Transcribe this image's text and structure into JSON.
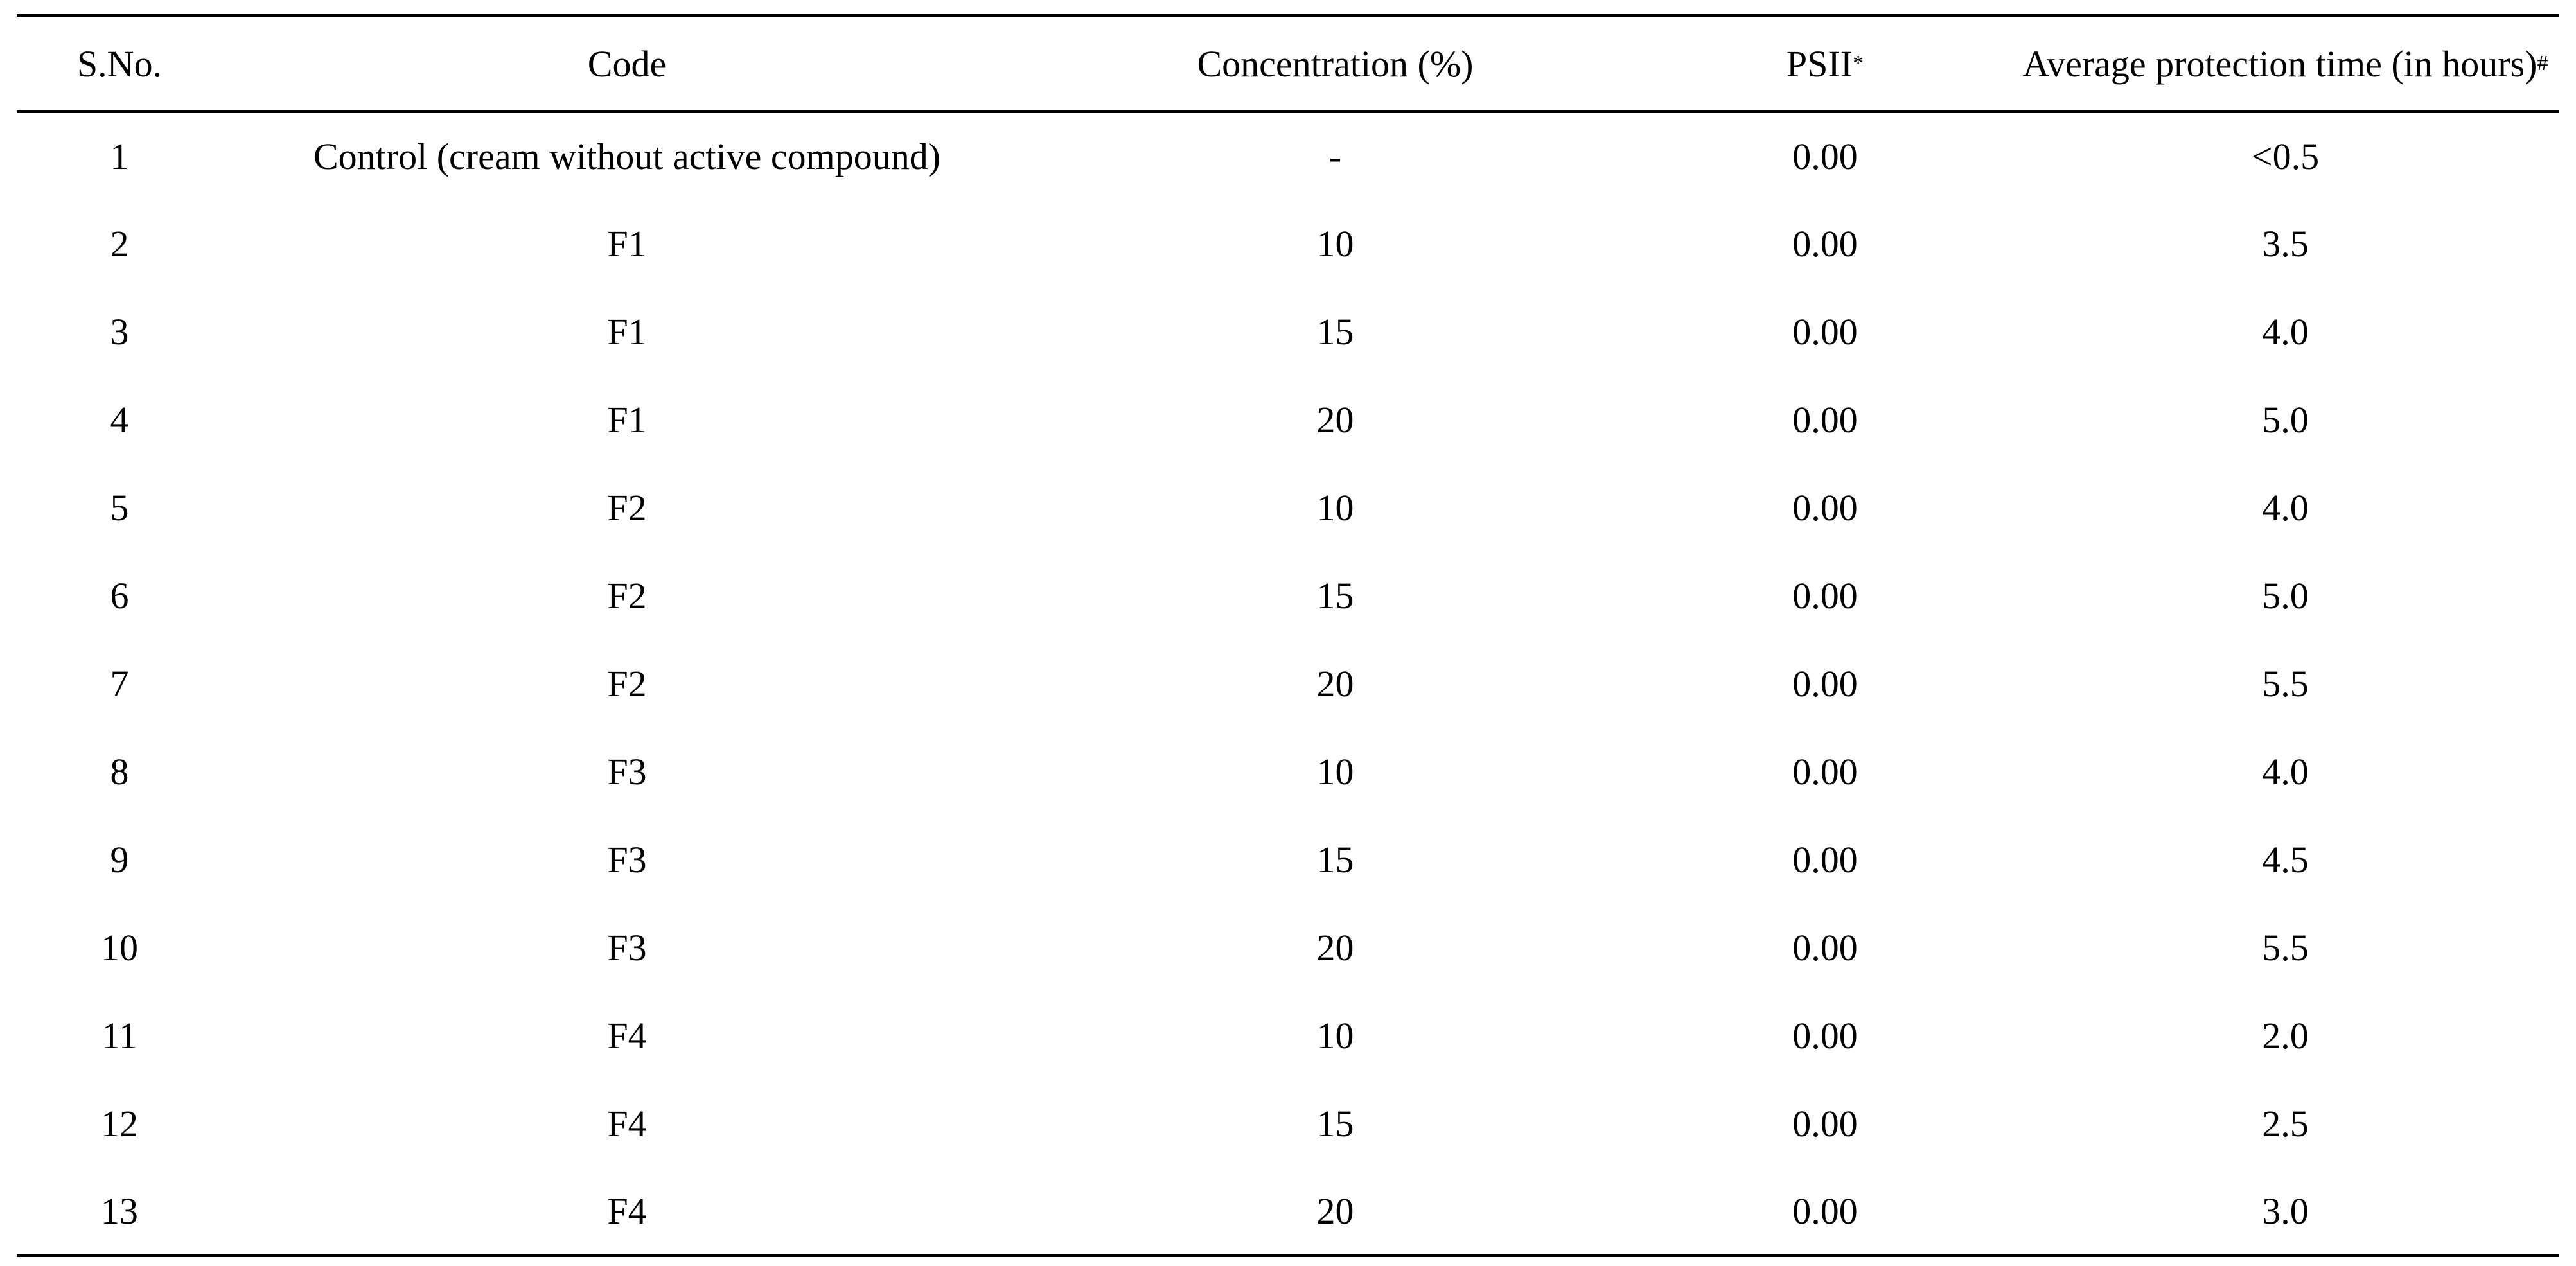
{
  "table": {
    "headers": {
      "sno": "S.No.",
      "code": "Code",
      "concentration": "Concentration (%)",
      "psii": "PSII",
      "psii_sup": "*",
      "time": "Average protection time (in hours)",
      "time_sup": "#"
    },
    "rows": [
      {
        "sno": "1",
        "code": "Control (cream without active compound)",
        "concentration": "-",
        "psii": "0.00",
        "time": "<0.5"
      },
      {
        "sno": "2",
        "code": "F1",
        "concentration": "10",
        "psii": "0.00",
        "time": "3.5"
      },
      {
        "sno": "3",
        "code": "F1",
        "concentration": "15",
        "psii": "0.00",
        "time": "4.0"
      },
      {
        "sno": "4",
        "code": "F1",
        "concentration": "20",
        "psii": "0.00",
        "time": "5.0"
      },
      {
        "sno": "5",
        "code": "F2",
        "concentration": "10",
        "psii": "0.00",
        "time": "4.0"
      },
      {
        "sno": "6",
        "code": "F2",
        "concentration": "15",
        "psii": "0.00",
        "time": "5.0"
      },
      {
        "sno": "7",
        "code": "F2",
        "concentration": "20",
        "psii": "0.00",
        "time": "5.5"
      },
      {
        "sno": "8",
        "code": "F3",
        "concentration": "10",
        "psii": "0.00",
        "time": "4.0"
      },
      {
        "sno": "9",
        "code": "F3",
        "concentration": "15",
        "psii": "0.00",
        "time": "4.5"
      },
      {
        "sno": "10",
        "code": "F3",
        "concentration": "20",
        "psii": "0.00",
        "time": "5.5"
      },
      {
        "sno": "11",
        "code": "F4",
        "concentration": "10",
        "psii": "0.00",
        "time": "2.0"
      },
      {
        "sno": "12",
        "code": "F4",
        "concentration": "15",
        "psii": "0.00",
        "time": "2.5"
      },
      {
        "sno": "13",
        "code": "F4",
        "concentration": "20",
        "psii": "0.00",
        "time": "3.0"
      }
    ]
  }
}
